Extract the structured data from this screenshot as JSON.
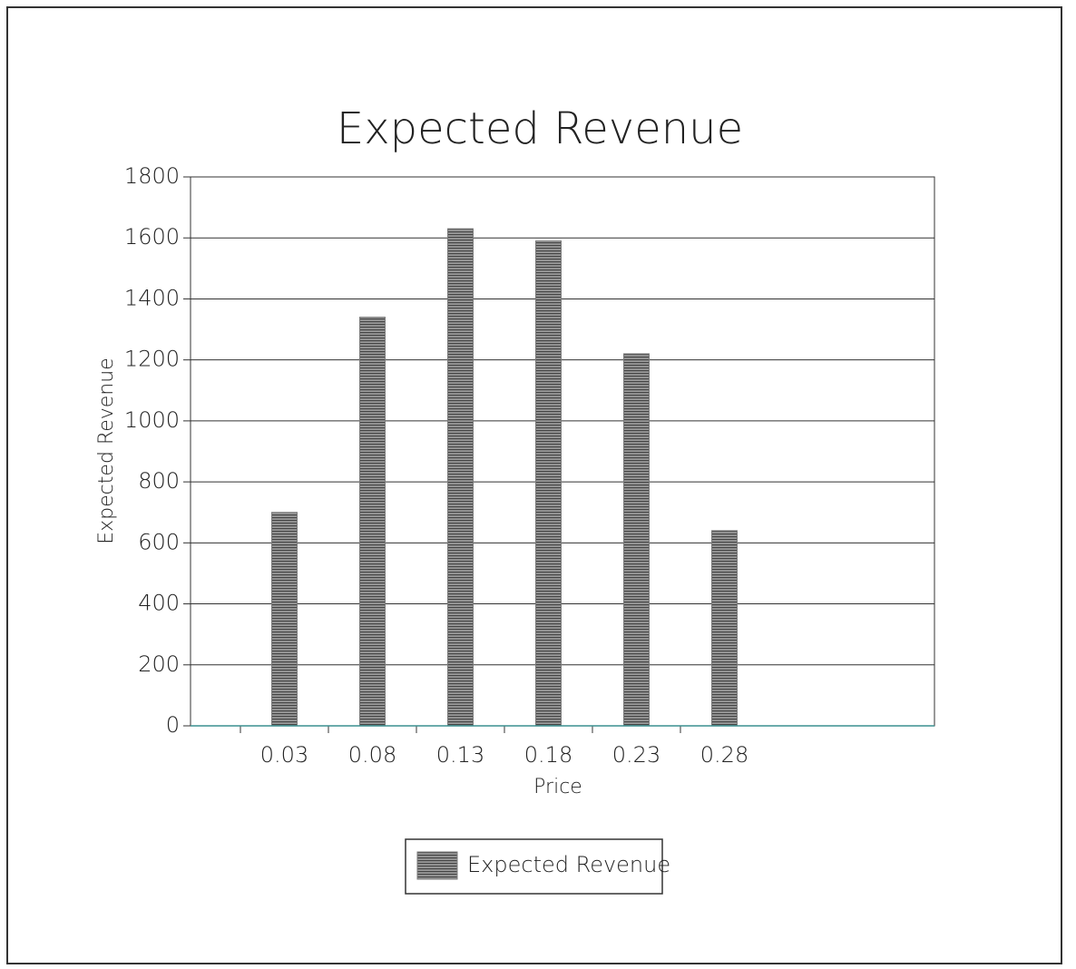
{
  "chart_data": {
    "type": "bar",
    "title": "Expected Revenue",
    "x_label": "Price",
    "y_label": "Expected Revenue",
    "categories": [
      "0.03",
      "0.08",
      "0.13",
      "0.18",
      "0.23",
      "0.28"
    ],
    "series": [
      {
        "name": "Expected Revenue",
        "color": "#7a7a7a",
        "values": [
          700,
          1340,
          1630,
          1590,
          1220,
          640
        ]
      }
    ],
    "ylim": [
      0,
      1800
    ],
    "yticks": [
      0,
      200,
      400,
      600,
      800,
      1000,
      1200,
      1400,
      1600,
      1800
    ],
    "grid": true,
    "legend": "bottom"
  }
}
